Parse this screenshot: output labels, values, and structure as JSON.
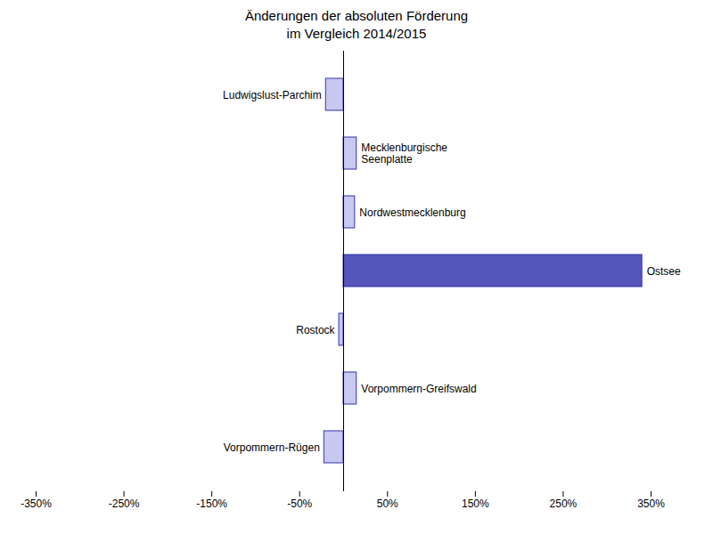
{
  "chart_data": {
    "type": "bar",
    "orientation": "horizontal",
    "title": "Änderungen der absoluten Förderung\nim Vergleich 2014/2015",
    "categories": [
      "Ludwigslust-Parchim",
      "Mecklenburgische\nSeenplatte",
      "Nordwestmecklenburg",
      "Ostsee",
      "Rostock",
      "Vorpommern-Greifswald",
      "Vorpommern-Rügen"
    ],
    "values": [
      -20,
      15,
      13,
      340,
      -5,
      15,
      -22
    ],
    "colors": [
      "#c8c8f0",
      "#c8c8f0",
      "#c8c8f0",
      "#5555bb",
      "#c8c8f0",
      "#c8c8f0",
      "#c8c8f0"
    ],
    "xlim": [
      -350,
      350
    ],
    "xticks": [
      {
        "value": -350,
        "label": "-350%"
      },
      {
        "value": -250,
        "label": "-250%"
      },
      {
        "value": -150,
        "label": "-150%"
      },
      {
        "value": -50,
        "label": "-50%"
      },
      {
        "value": 50,
        "label": "50%"
      },
      {
        "value": 150,
        "label": "150%"
      },
      {
        "value": 250,
        "label": "250%"
      },
      {
        "value": 350,
        "label": "350%"
      }
    ],
    "tick_labels": "x",
    "grid": false
  }
}
